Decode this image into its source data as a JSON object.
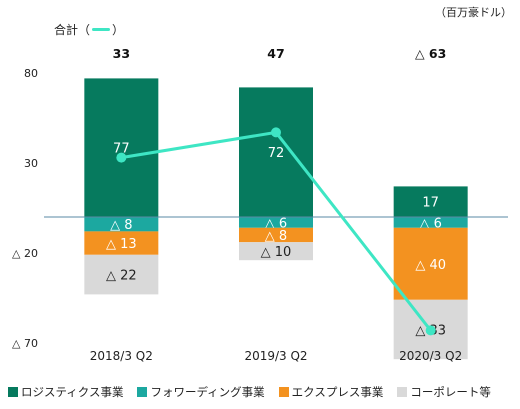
{
  "unit_label": "（百万豪ドル）",
  "total_legend": {
    "text": "合計",
    "open": "（",
    "close": "）"
  },
  "colors": {
    "logistics": "#067a5e",
    "forwarding": "#1ca8a0",
    "express": "#f39220",
    "corporate": "#d9d9d9",
    "total_line": "#3ee6c4",
    "zero_line": "#5a8aa5"
  },
  "chart_data": {
    "type": "bar",
    "categories": [
      "2018/3 Q2",
      "2019/3 Q2",
      "2020/3 Q2"
    ],
    "ylim": [
      -70,
      80
    ],
    "yticks": [
      80,
      30,
      -20,
      -70
    ],
    "ytick_labels": [
      "80",
      "30",
      "△ 20",
      "△ 70"
    ],
    "totals": [
      33,
      47,
      -63
    ],
    "total_labels": [
      "33",
      "47",
      "△ 63"
    ],
    "series": [
      {
        "name": "ロジスティクス事業",
        "key": "logistics",
        "values": [
          77,
          72,
          17
        ],
        "labels": [
          "77",
          "72",
          "17"
        ]
      },
      {
        "name": "フォワーディング事業",
        "key": "forwarding",
        "values": [
          -8,
          -6,
          -6
        ],
        "labels": [
          "△ 8",
          "△ 6",
          "△ 6"
        ]
      },
      {
        "name": "エクスプレス事業",
        "key": "express",
        "values": [
          -13,
          -8,
          -40
        ],
        "labels": [
          "△ 13",
          "△ 8",
          "△ 40"
        ]
      },
      {
        "name": "コーポレート等",
        "key": "corporate",
        "values": [
          -22,
          -10,
          -33
        ],
        "labels": [
          "△ 22",
          "△ 10",
          "△ 33"
        ]
      }
    ]
  }
}
